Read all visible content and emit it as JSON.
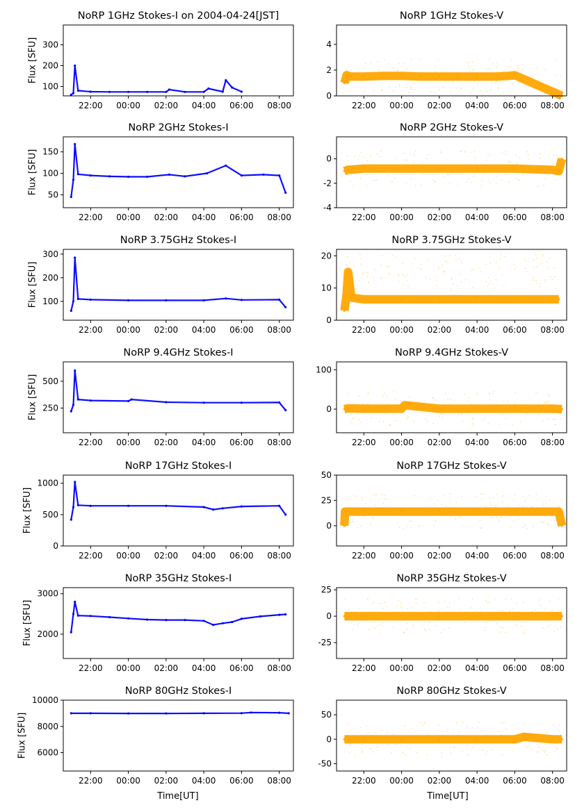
{
  "figure": {
    "xlabel": "Time[UT]"
  },
  "colors": {
    "stokes_i": "#0000ff",
    "stokes_v": "#ffa500",
    "axis": "#000000"
  },
  "chart_data": [
    {
      "type": "scatter",
      "title": "NoRP 1GHz Stokes-I on 2004-04-24[JST]",
      "ylabel": "Flux [SFU]",
      "ylim": [
        55,
        395
      ],
      "yticks": [
        100,
        200,
        300
      ],
      "xticks": [
        "22:00",
        "00:00",
        "02:00",
        "04:00",
        "06:00",
        "08:00"
      ],
      "series": [
        {
          "x": [
            "20:58",
            "21:05",
            "21:10",
            "21:20",
            "22:00",
            "23:00",
            "00:00",
            "01:00",
            "02:00",
            "02:10",
            "03:00",
            "04:00",
            "04:15",
            "05:00",
            "05:10",
            "05:30",
            "06:00"
          ],
          "y": [
            60,
            68,
            200,
            80,
            75,
            74,
            74,
            74,
            74,
            85,
            74,
            74,
            90,
            75,
            130,
            95,
            75
          ]
        }
      ]
    },
    {
      "type": "scatter",
      "title": "NoRP 1GHz Stokes-V",
      "ylim": [
        0,
        5.5
      ],
      "yticks": [
        0,
        2,
        4
      ],
      "xticks": [
        "22:00",
        "00:00",
        "02:00",
        "04:00",
        "06:00",
        "08:00"
      ],
      "series": [
        {
          "x": [
            "20:58",
            "21:05",
            "21:20",
            "22:00",
            "23:00",
            "00:00",
            "01:00",
            "02:00",
            "03:00",
            "04:00",
            "05:00",
            "05:40",
            "06:00",
            "08:30"
          ],
          "y": [
            1.0,
            1.6,
            1.5,
            1.5,
            1.55,
            1.55,
            1.5,
            1.5,
            1.5,
            1.5,
            1.5,
            1.55,
            1.6,
            0.0
          ]
        }
      ]
    },
    {
      "type": "scatter",
      "title": "NoRP 2GHz Stokes-I",
      "ylabel": "Flux [SFU]",
      "ylim": [
        20,
        185
      ],
      "yticks": [
        50,
        100,
        150
      ],
      "xticks": [
        "22:00",
        "00:00",
        "02:00",
        "04:00",
        "06:00",
        "08:00"
      ],
      "series": [
        {
          "x": [
            "20:58",
            "21:05",
            "21:10",
            "21:20",
            "22:00",
            "23:00",
            "00:00",
            "01:00",
            "02:10",
            "03:00",
            "04:10",
            "05:10",
            "06:00",
            "07:10",
            "08:00",
            "08:20"
          ],
          "y": [
            45,
            85,
            168,
            98,
            95,
            93,
            92,
            92,
            97,
            93,
            100,
            118,
            95,
            97,
            95,
            55
          ]
        }
      ]
    },
    {
      "type": "scatter",
      "title": "NoRP 2GHz Stokes-V",
      "ylim": [
        -4,
        1.8
      ],
      "yticks": [
        -4,
        -2,
        0
      ],
      "xticks": [
        "22:00",
        "00:00",
        "02:00",
        "04:00",
        "06:00",
        "08:00"
      ],
      "series": [
        {
          "x": [
            "20:58",
            "21:10",
            "22:00",
            "00:00",
            "02:00",
            "04:00",
            "06:00",
            "08:00",
            "08:20",
            "08:30"
          ],
          "y": [
            -1.0,
            -0.9,
            -0.8,
            -0.8,
            -0.8,
            -0.8,
            -0.8,
            -0.9,
            -1.0,
            0.0
          ]
        }
      ]
    },
    {
      "type": "scatter",
      "title": "NoRP 3.75GHz Stokes-I",
      "ylabel": "Flux [SFU]",
      "ylim": [
        20,
        320
      ],
      "yticks": [
        100,
        200,
        300
      ],
      "xticks": [
        "22:00",
        "00:00",
        "02:00",
        "04:00",
        "06:00",
        "08:00"
      ],
      "series": [
        {
          "x": [
            "20:58",
            "21:05",
            "21:10",
            "21:20",
            "22:00",
            "00:00",
            "02:00",
            "04:00",
            "05:10",
            "06:00",
            "08:00",
            "08:20"
          ],
          "y": [
            60,
            100,
            285,
            110,
            107,
            104,
            104,
            104,
            112,
            106,
            107,
            75
          ]
        }
      ]
    },
    {
      "type": "scatter",
      "title": "NoRP 3.75GHz Stokes-V",
      "ylim": [
        0,
        22
      ],
      "yticks": [
        0,
        10,
        20
      ],
      "xticks": [
        "22:00",
        "00:00",
        "02:00",
        "04:00",
        "06:00",
        "08:00"
      ],
      "series": [
        {
          "x": [
            "20:58",
            "21:05",
            "21:10",
            "21:20",
            "22:00",
            "00:00",
            "02:00",
            "04:00",
            "06:00",
            "08:00",
            "08:20"
          ],
          "y": [
            3,
            8,
            15,
            7,
            6.5,
            6.5,
            6.5,
            6.5,
            6.5,
            6.5,
            6.5
          ]
        }
      ]
    },
    {
      "type": "scatter",
      "title": "NoRP 9.4GHz Stokes-I",
      "ylabel": "Flux [SFU]",
      "ylim": [
        20,
        680
      ],
      "yticks": [
        250,
        500
      ],
      "xticks": [
        "22:00",
        "00:00",
        "02:00",
        "04:00",
        "06:00",
        "08:00"
      ],
      "series": [
        {
          "x": [
            "20:58",
            "21:05",
            "21:10",
            "21:20",
            "22:00",
            "00:00",
            "00:10",
            "02:00",
            "04:00",
            "06:00",
            "08:00",
            "08:20"
          ],
          "y": [
            220,
            280,
            600,
            330,
            320,
            315,
            330,
            305,
            300,
            300,
            302,
            230
          ]
        }
      ]
    },
    {
      "type": "scatter",
      "title": "NoRP 9.4GHz Stokes-V",
      "ylim": [
        -60,
        120
      ],
      "yticks": [
        0,
        100
      ],
      "xticks": [
        "22:00",
        "00:00",
        "02:00",
        "04:00",
        "06:00",
        "08:00"
      ],
      "series": [
        {
          "x": [
            "20:58",
            "21:10",
            "22:00",
            "00:00",
            "00:10",
            "02:00",
            "04:00",
            "06:00",
            "08:00",
            "08:30"
          ],
          "y": [
            0,
            2,
            1,
            1,
            10,
            1,
            1,
            1,
            1,
            0
          ]
        }
      ]
    },
    {
      "type": "scatter",
      "title": "NoRP 17GHz Stokes-I",
      "ylabel": "Flux [SFU]",
      "ylim": [
        0,
        1130
      ],
      "yticks": [
        0,
        500,
        1000
      ],
      "xticks": [
        "22:00",
        "00:00",
        "02:00",
        "04:00",
        "06:00",
        "08:00"
      ],
      "series": [
        {
          "x": [
            "20:58",
            "21:05",
            "21:10",
            "21:20",
            "22:00",
            "00:00",
            "02:00",
            "04:00",
            "04:30",
            "05:00",
            "06:00",
            "08:00",
            "08:20"
          ],
          "y": [
            420,
            620,
            1020,
            650,
            640,
            640,
            640,
            620,
            580,
            600,
            630,
            640,
            500
          ]
        }
      ]
    },
    {
      "type": "scatter",
      "title": "NoRP 17GHz Stokes-V",
      "ylim": [
        -20,
        50
      ],
      "yticks": [
        0,
        25,
        50
      ],
      "xticks": [
        "22:00",
        "00:00",
        "02:00",
        "04:00",
        "06:00",
        "08:00"
      ],
      "series": [
        {
          "x": [
            "20:58",
            "21:00",
            "22:00",
            "00:00",
            "02:00",
            "04:00",
            "06:00",
            "08:00",
            "08:20",
            "08:30"
          ],
          "y": [
            0,
            14,
            14,
            14,
            14,
            14,
            14,
            14,
            14,
            0
          ]
        }
      ]
    },
    {
      "type": "scatter",
      "title": "NoRP 35GHz Stokes-I",
      "ylabel": "Flux [SFU]",
      "ylim": [
        1400,
        3150
      ],
      "yticks": [
        2000,
        3000
      ],
      "xticks": [
        "22:00",
        "00:00",
        "02:00",
        "04:00",
        "06:00",
        "08:00"
      ],
      "series": [
        {
          "x": [
            "20:58",
            "21:05",
            "21:10",
            "21:20",
            "22:00",
            "23:00",
            "00:00",
            "01:00",
            "02:00",
            "03:00",
            "04:00",
            "04:30",
            "05:00",
            "05:30",
            "06:00",
            "07:00",
            "08:00",
            "08:20"
          ],
          "y": [
            2050,
            2500,
            2800,
            2460,
            2450,
            2420,
            2390,
            2360,
            2350,
            2350,
            2330,
            2230,
            2270,
            2300,
            2380,
            2440,
            2480,
            2490
          ]
        }
      ]
    },
    {
      "type": "scatter",
      "title": "NoRP 35GHz Stokes-V",
      "ylim": [
        -40,
        27
      ],
      "yticks": [
        -25,
        0,
        25
      ],
      "xticks": [
        "22:00",
        "00:00",
        "02:00",
        "04:00",
        "06:00",
        "08:00"
      ],
      "series": [
        {
          "x": [
            "20:58",
            "22:00",
            "00:00",
            "02:00",
            "04:00",
            "06:00",
            "08:00",
            "08:30"
          ],
          "y": [
            0,
            0,
            0,
            0,
            0,
            0,
            0,
            0
          ]
        }
      ]
    },
    {
      "type": "scatter",
      "title": "NoRP 80GHz Stokes-I",
      "ylabel": "Flux [SFU]",
      "ylim": [
        4600,
        10000
      ],
      "yticks": [
        6000,
        8000,
        10000
      ],
      "xticks": [
        "22:00",
        "00:00",
        "02:00",
        "04:00",
        "06:00",
        "08:00"
      ],
      "series": [
        {
          "x": [
            "20:58",
            "22:00",
            "00:00",
            "02:00",
            "04:00",
            "06:00",
            "06:30",
            "08:00",
            "08:30"
          ],
          "y": [
            9000,
            9000,
            8990,
            8990,
            9000,
            9010,
            9060,
            9040,
            9000
          ]
        }
      ]
    },
    {
      "type": "scatter",
      "title": "NoRP 80GHz Stokes-V",
      "ylim": [
        -65,
        80
      ],
      "yticks": [
        -50,
        0,
        50
      ],
      "xticks": [
        "22:00",
        "00:00",
        "02:00",
        "04:00",
        "06:00",
        "08:00"
      ],
      "series": [
        {
          "x": [
            "20:58",
            "22:00",
            "00:00",
            "02:00",
            "04:00",
            "06:00",
            "06:30",
            "08:00",
            "08:30"
          ],
          "y": [
            0,
            0,
            0,
            0,
            0,
            0,
            5,
            0,
            0
          ]
        }
      ]
    }
  ]
}
